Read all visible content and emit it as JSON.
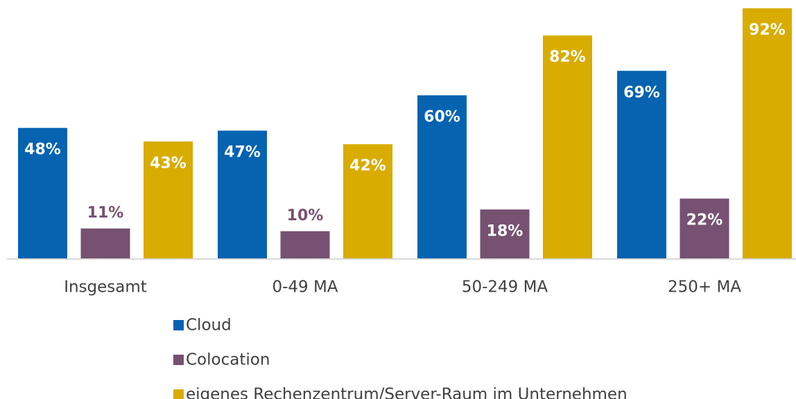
{
  "chart_data": {
    "type": "bar",
    "categories": [
      "Insgesamt",
      "0-49 MA",
      "50-249 MA",
      "250+ MA"
    ],
    "series": [
      {
        "name": "Cloud",
        "color": "#0563b0",
        "values": [
          48,
          47,
          60,
          69
        ],
        "value_labels": [
          "48%",
          "47%",
          "60%",
          "69%"
        ]
      },
      {
        "name": "Colocation",
        "color": "#765171",
        "values": [
          11,
          10,
          18,
          22
        ],
        "value_labels": [
          "11%",
          "10%",
          "18%",
          "22%"
        ]
      },
      {
        "name": "eigenes Rechenzentrum/Server-Raum im Unternehmen",
        "color": "#d8ac00",
        "values": [
          43,
          42,
          82,
          92
        ],
        "value_labels": [
          "43%",
          "42%",
          "82%",
          "92%"
        ]
      }
    ],
    "ylim": [
      0,
      92
    ]
  }
}
